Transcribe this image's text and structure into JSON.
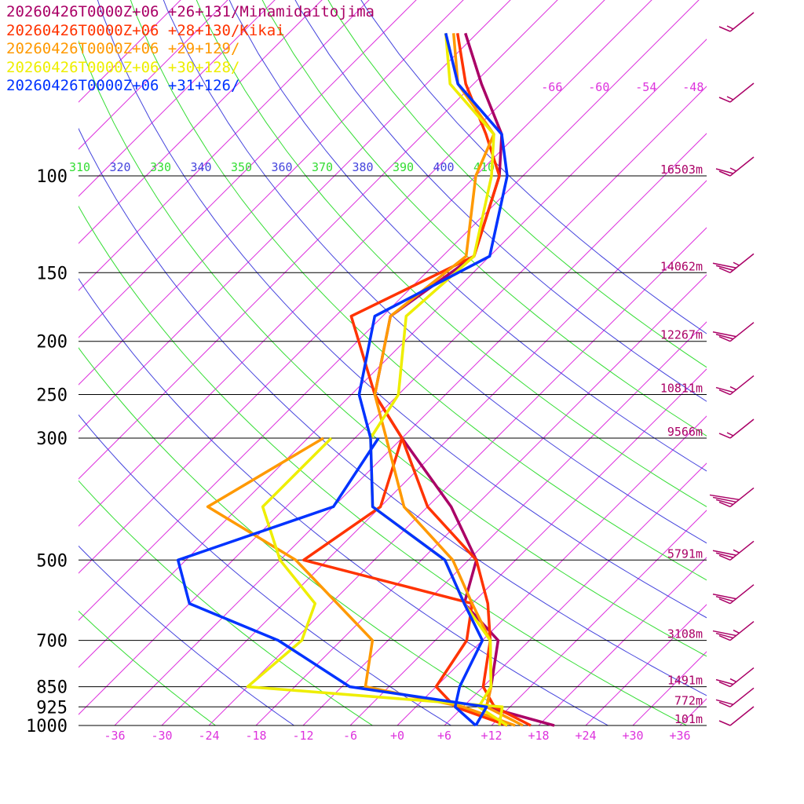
{
  "chart_data": {
    "type": "line",
    "title": "Skew-T log-P soundings",
    "legend": [
      {
        "label": "20260426T0000Z+06 +26+131/Minamidaitojima",
        "color": "#aa0066"
      },
      {
        "label": "20260426T0000Z+06 +28+130/Kikai",
        "color": "#ff3300"
      },
      {
        "label": "20260426T0000Z+06 +29+129/",
        "color": "#ff9900"
      },
      {
        "label": "20260426T0000Z+06 +30+128/",
        "color": "#eeee00"
      },
      {
        "label": "20260426T0000Z+06 +31+126/",
        "color": "#0033ff"
      }
    ],
    "pressure_levels": [
      {
        "p": 100,
        "label": "100",
        "height": "16503m"
      },
      {
        "p": 150,
        "label": "150",
        "height": "14062m"
      },
      {
        "p": 200,
        "label": "200",
        "height": "12267m"
      },
      {
        "p": 250,
        "label": "250",
        "height": "10811m"
      },
      {
        "p": 300,
        "label": "300",
        "height": "9566m"
      },
      {
        "p": 500,
        "label": "500",
        "height": "5791m"
      },
      {
        "p": 700,
        "label": "700",
        "height": "3108m"
      },
      {
        "p": 850,
        "label": "850",
        "height": "1491m"
      },
      {
        "p": 925,
        "label": "925",
        "height": "772m"
      },
      {
        "p": 1000,
        "label": "1000",
        "height": "101m"
      }
    ],
    "temperature_ticks": [
      "-36",
      "-30",
      "-24",
      "-18",
      "-12",
      "-6",
      "+0",
      "+6",
      "+12",
      "+18",
      "+24",
      "+30",
      "+36"
    ],
    "upper_temperature_labels": [
      "-66",
      "-60",
      "-54",
      "-48"
    ],
    "theta_labels": [
      {
        "text": "310",
        "color": "#33dd33"
      },
      {
        "text": "320",
        "color": "#4444dd"
      },
      {
        "text": "330",
        "color": "#33dd33"
      },
      {
        "text": "340",
        "color": "#4444dd"
      },
      {
        "text": "350",
        "color": "#33dd33"
      },
      {
        "text": "360",
        "color": "#4444dd"
      },
      {
        "text": "370",
        "color": "#33dd33"
      },
      {
        "text": "380",
        "color": "#4444dd"
      },
      {
        "text": "390",
        "color": "#33dd33"
      },
      {
        "text": "400",
        "color": "#4444dd"
      },
      {
        "text": "410",
        "color": "#33dd33"
      }
    ],
    "series": [
      {
        "name": "Minamidaitojima",
        "color": "#aa0066",
        "temperature": [
          [
            -79.5,
            55
          ],
          [
            -71,
            68
          ],
          [
            -62,
            84
          ],
          [
            -57,
            100
          ],
          [
            -50,
            140
          ],
          [
            -53,
            180
          ],
          [
            -45,
            250
          ],
          [
            -36,
            300
          ],
          [
            -21,
            400
          ],
          [
            -11,
            500
          ],
          [
            -7,
            600
          ],
          [
            2,
            700
          ],
          [
            7,
            850
          ],
          [
            9,
            925
          ],
          [
            20,
            1000
          ]
        ],
        "dewpoint": null
      },
      {
        "name": "Kikai",
        "color": "#ff3300",
        "temperature": [
          [
            -80.5,
            55
          ],
          [
            -73,
            68
          ],
          [
            -64,
            84
          ],
          [
            -57,
            100
          ],
          [
            -50,
            140
          ],
          [
            -58,
            180
          ],
          [
            -45,
            250
          ],
          [
            -36,
            300
          ],
          [
            -24,
            400
          ],
          [
            -11,
            500
          ],
          [
            -4,
            600
          ],
          [
            1,
            700
          ],
          [
            6,
            850
          ],
          [
            10,
            925
          ],
          [
            17,
            1000
          ]
        ],
        "dewpoint": [
          [
            -36,
            300
          ],
          [
            -30,
            400
          ],
          [
            -33,
            500
          ],
          [
            -6,
            600
          ],
          [
            -2,
            700
          ],
          [
            0,
            850
          ],
          [
            5,
            925
          ],
          [
            14,
            1000
          ]
        ]
      },
      {
        "name": "+29+129",
        "color": "#ff9900",
        "temperature": [
          [
            -81,
            55
          ],
          [
            -74,
            68
          ],
          [
            -63,
            84
          ],
          [
            -60,
            100
          ],
          [
            -51,
            140
          ],
          [
            -53,
            180
          ],
          [
            -45,
            250
          ],
          [
            -38,
            300
          ],
          [
            -27,
            400
          ],
          [
            -14,
            500
          ],
          [
            -6,
            600
          ],
          [
            1,
            700
          ],
          [
            7,
            850
          ],
          [
            9,
            925
          ],
          [
            16,
            1000
          ]
        ],
        "dewpoint": [
          [
            -46,
            300
          ],
          [
            -52,
            400
          ],
          [
            -34,
            500
          ],
          [
            -14,
            700
          ],
          [
            -9,
            850
          ],
          [
            6,
            925
          ],
          [
            15,
            1000
          ]
        ]
      },
      {
        "name": "+30+128",
        "color": "#eeee00",
        "temperature": [
          [
            -82,
            55
          ],
          [
            -75,
            68
          ],
          [
            -63,
            84
          ],
          [
            -58,
            100
          ],
          [
            -50,
            140
          ],
          [
            -51,
            180
          ],
          [
            -42,
            250
          ],
          [
            -40,
            300
          ],
          [
            -31,
            400
          ],
          [
            -15,
            500
          ],
          [
            -7,
            600
          ],
          [
            1,
            700
          ],
          [
            7,
            850
          ],
          [
            8,
            925
          ],
          [
            14,
            1000
          ]
        ],
        "dewpoint": [
          [
            -45,
            300
          ],
          [
            -45,
            400
          ],
          [
            -36,
            500
          ],
          [
            -26,
            600
          ],
          [
            -23,
            700
          ],
          [
            -24,
            850
          ],
          [
            11,
            925
          ],
          [
            13,
            1000
          ]
        ]
      },
      {
        "name": "+31+126",
        "color": "#0033ff",
        "temperature": [
          [
            -82,
            55
          ],
          [
            -74,
            68
          ],
          [
            -62,
            84
          ],
          [
            -56,
            100
          ],
          [
            -48,
            140
          ],
          [
            -55,
            180
          ],
          [
            -47,
            250
          ],
          [
            -40,
            300
          ],
          [
            -31,
            400
          ],
          [
            -15,
            500
          ],
          [
            -7,
            600
          ],
          [
            0,
            700
          ],
          [
            3,
            850
          ],
          [
            5,
            925
          ],
          [
            10,
            1000
          ]
        ],
        "dewpoint": [
          [
            -39,
            300
          ],
          [
            -36,
            400
          ],
          [
            -49,
            500
          ],
          [
            -42,
            600
          ],
          [
            -26,
            700
          ],
          [
            -11,
            850
          ],
          [
            9,
            925
          ],
          [
            10,
            1000
          ]
        ]
      }
    ],
    "wind_barbs": [
      {
        "p": 55,
        "speed_kt": 15
      },
      {
        "p": 75,
        "speed_kt": 15
      },
      {
        "p": 100,
        "speed_kt": 25
      },
      {
        "p": 150,
        "speed_kt": 35
      },
      {
        "p": 200,
        "speed_kt": 30
      },
      {
        "p": 250,
        "speed_kt": 25
      },
      {
        "p": 300,
        "speed_kt": 15
      },
      {
        "p": 400,
        "speed_kt": 40
      },
      {
        "p": 500,
        "speed_kt": 35
      },
      {
        "p": 600,
        "speed_kt": 30
      },
      {
        "p": 700,
        "speed_kt": 35
      },
      {
        "p": 850,
        "speed_kt": 25
      },
      {
        "p": 925,
        "speed_kt": 20
      },
      {
        "p": 1000,
        "speed_kt": 10
      }
    ]
  }
}
